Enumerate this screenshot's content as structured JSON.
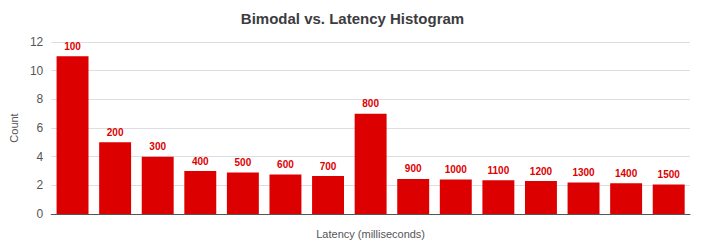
{
  "chart_data": {
    "type": "bar",
    "title": "Bimodal vs. Latency Histogram",
    "xlabel": "Latency (milliseconds)",
    "ylabel": "Count",
    "categories": [
      100,
      200,
      300,
      400,
      500,
      600,
      700,
      800,
      900,
      1000,
      1100,
      1200,
      1300,
      1400,
      1500
    ],
    "values": [
      11,
      5,
      4,
      3,
      2.9,
      2.75,
      2.65,
      7,
      2.45,
      2.4,
      2.35,
      2.3,
      2.2,
      2.15,
      2.05
    ],
    "color": "#dd0000",
    "ylim": [
      0,
      12
    ],
    "yticks": [
      0,
      2,
      4,
      6,
      8,
      10,
      12
    ],
    "grid": true,
    "tick_labels": "y"
  }
}
